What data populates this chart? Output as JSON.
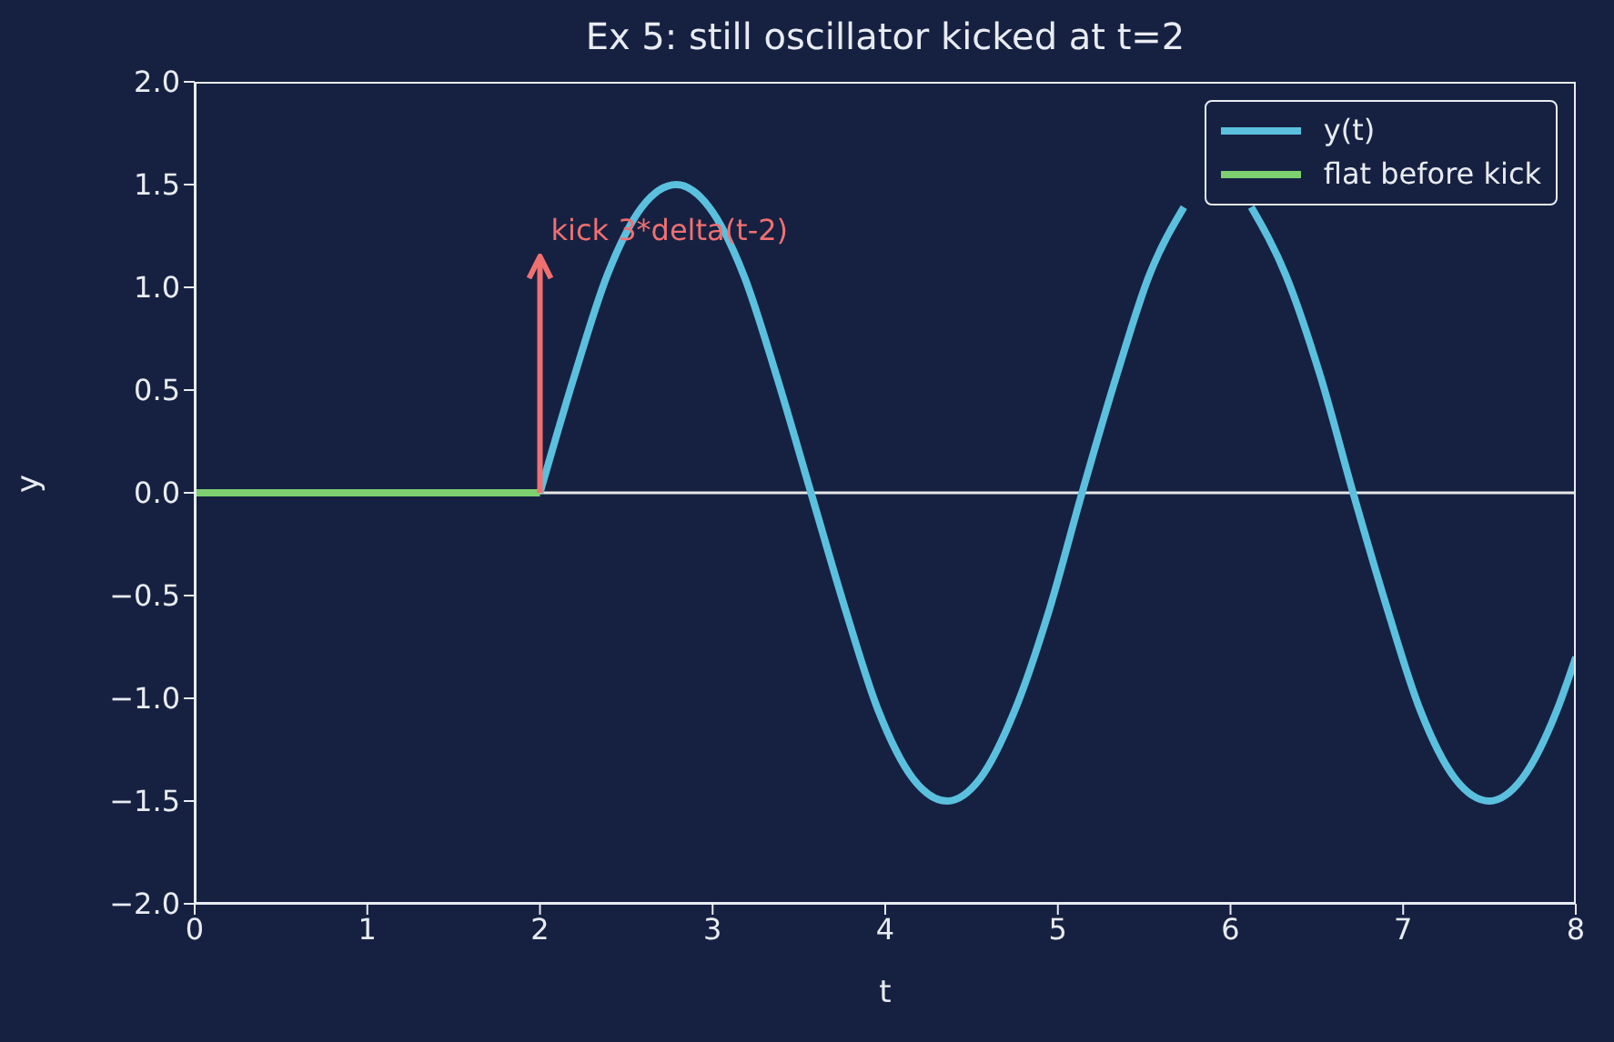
{
  "chart_data": {
    "type": "line",
    "title": "Ex 5: still oscillator kicked at t=2",
    "xlabel": "t",
    "ylabel": "y",
    "xlim": [
      0,
      8
    ],
    "ylim": [
      -2,
      2
    ],
    "xticks": [
      0,
      1,
      2,
      3,
      4,
      5,
      6,
      7,
      8
    ],
    "yticks": [
      {
        "value": -2,
        "label": "−2.0"
      },
      {
        "value": -1.5,
        "label": "−1.5"
      },
      {
        "value": -1,
        "label": "−1.0"
      },
      {
        "value": -0.5,
        "label": "−0.5"
      },
      {
        "value": 0,
        "label": "0.0"
      },
      {
        "value": 0.5,
        "label": "0.5"
      },
      {
        "value": 1,
        "label": "1.0"
      },
      {
        "value": 1.5,
        "label": "1.5"
      },
      {
        "value": 2,
        "label": "2.0"
      }
    ],
    "series": [
      {
        "name": "y(t)",
        "color": "#5bc0de",
        "x": [
          2,
          2.2,
          2.39,
          2.59,
          2.79,
          2.98,
          3.18,
          3.37,
          3.57,
          3.77,
          3.96,
          4.16,
          4.36,
          4.55,
          4.75,
          4.95,
          5.14,
          5.34,
          5.53,
          5.73,
          5.93,
          6.12,
          6.32,
          6.52,
          6.71,
          6.91,
          7.1,
          7.3,
          7.5,
          7.69,
          7.89,
          8
        ],
        "values": [
          0,
          0.57,
          1.06,
          1.39,
          1.5,
          1.39,
          1.06,
          0.57,
          0,
          -0.57,
          -1.06,
          -1.39,
          -1.5,
          -1.39,
          -1.06,
          -0.57,
          0,
          0.57,
          1.06,
          1.39,
          null,
          1.39,
          1.06,
          0.57,
          0,
          -0.57,
          -1.06,
          -1.39,
          -1.5,
          -1.39,
          -1.06,
          -0.8
        ]
      },
      {
        "name": "flat before kick",
        "color": "#7dcf6f",
        "x": [
          0,
          2
        ],
        "values": [
          0,
          0
        ]
      }
    ],
    "ref_lines": [
      {
        "axis": "y",
        "value": 0,
        "color": "#e6e6e6"
      }
    ],
    "annotations": [
      {
        "text": "kick 3*delta(t-2)",
        "x": 2,
        "y": 0
      }
    ],
    "legend": "top right",
    "grid": false,
    "marker": "none",
    "line_style": "solid"
  }
}
